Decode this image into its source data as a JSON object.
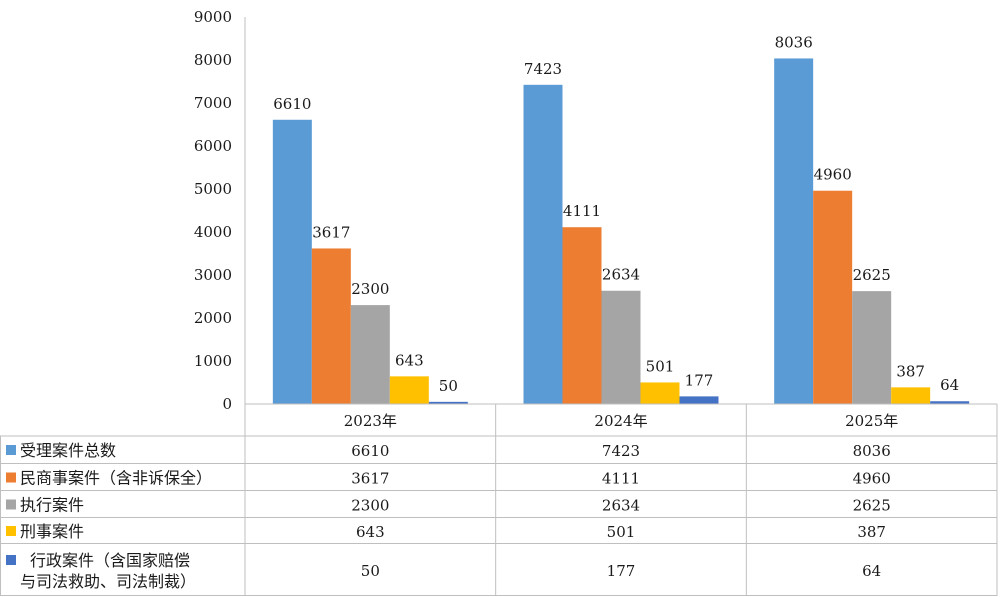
{
  "chart_data": {
    "type": "bar",
    "categories": [
      "2023年",
      "2024年",
      "2025年"
    ],
    "ylim": [
      0,
      9000
    ],
    "yticks": [
      0,
      1000,
      2000,
      3000,
      4000,
      5000,
      6000,
      7000,
      8000,
      9000
    ],
    "grid": false,
    "legend": "data-table-left",
    "series": [
      {
        "name": "受理案件总数",
        "color": "#5b9bd5",
        "values": [
          6610,
          7423,
          8036
        ]
      },
      {
        "name": "民商事案件（含非诉保全）",
        "color": "#ed7d31",
        "values": [
          3617,
          4111,
          4960
        ]
      },
      {
        "name": "执行案件",
        "color": "#a5a5a5",
        "values": [
          2300,
          2634,
          2625
        ]
      },
      {
        "name": "刑事案件",
        "color": "#ffc000",
        "values": [
          643,
          501,
          387
        ]
      },
      {
        "name": "行政案件（含国家赔偿与司法救助、司法制裁）",
        "name_lines": [
          "行政案件（含国家赔偿",
          "与司法救助、司法制裁）"
        ],
        "color": "#4472c4",
        "values": [
          50,
          177,
          64
        ]
      }
    ]
  }
}
